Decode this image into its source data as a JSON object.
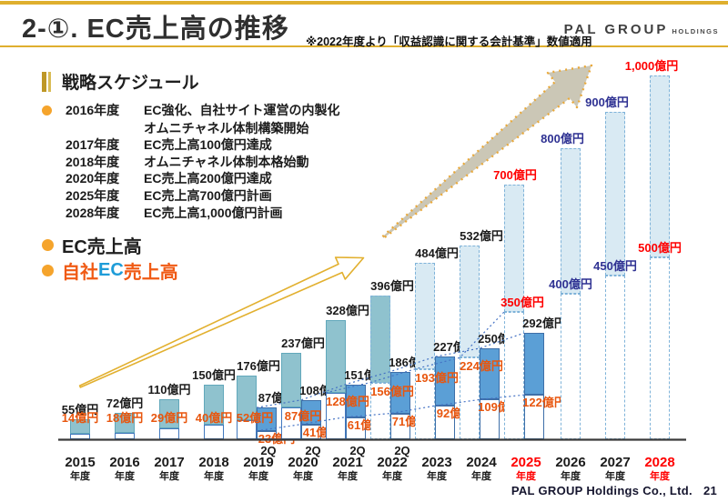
{
  "header": {
    "title": "2-①. EC売上高の推移",
    "note": "※2022年度より「収益認識に関する会計基準」数値適用",
    "logo_main": "PAL GROUP",
    "logo_sub": "HOLDINGS"
  },
  "footer": {
    "company": "PAL GROUP Holdings Co., Ltd.",
    "page": "21"
  },
  "strategy": {
    "heading": "戦略スケジュール",
    "items": [
      {
        "bullet": true,
        "year": "2016年度",
        "text": "EC強化、自社サイト運営の内製化"
      },
      {
        "bullet": false,
        "year": "",
        "text": "オムニチャネル体制構築開始"
      },
      {
        "bullet": false,
        "year": "2017年度",
        "text": "EC売上高100億円達成"
      },
      {
        "bullet": false,
        "year": "2018年度",
        "text": "オムニチャネル体制本格始動"
      },
      {
        "bullet": false,
        "year": "2020年度",
        "text": "EC売上高200億円達成"
      },
      {
        "bullet": false,
        "year": "2025年度",
        "text": "EC売上高700億円計画"
      },
      {
        "bullet": false,
        "year": "2028年度",
        "text": "EC売上高1,000億円計画"
      }
    ]
  },
  "legend": [
    {
      "parts": [
        {
          "text": "EC売上高",
          "color": "#1f1f1f"
        }
      ]
    },
    {
      "parts": [
        {
          "text": "自社",
          "color": "#F05A14"
        },
        {
          "text": "EC",
          "color": "#1E9CD8"
        },
        {
          "text": "売上高",
          "color": "#F05A14"
        }
      ]
    }
  ],
  "chart_data": {
    "type": "bar",
    "unit": "億円",
    "year_suffix": "年度",
    "q2_text": "2Q",
    "title": "EC売上高の推移",
    "series_names": [
      "EC売上高",
      "自社EC売上高",
      "2Q EC売上高",
      "2Q 自社EC売上高"
    ],
    "years": [
      {
        "label": "2015",
        "ec_total": 55,
        "own_ec": 14
      },
      {
        "label": "2016",
        "ec_total": 72,
        "own_ec": 18
      },
      {
        "label": "2017",
        "ec_total": 110,
        "own_ec": 29
      },
      {
        "label": "2018",
        "ec_total": 150,
        "own_ec": 40
      },
      {
        "label": "2019",
        "ec_total": 176,
        "own_ec": 52,
        "q2_total": 87,
        "q2_own": 23,
        "q2_label": true
      },
      {
        "label": "2020",
        "ec_total": 237,
        "own_ec": 87,
        "q2_total": 108,
        "q2_own": 41,
        "q2_label": true
      },
      {
        "label": "2021",
        "ec_total": 328,
        "own_ec": 128,
        "q2_total": 151,
        "q2_own": 61,
        "q2_label": true
      },
      {
        "label": "2022",
        "ec_total": 396,
        "own_ec": 156,
        "q2_total": 186,
        "q2_own": 71,
        "q2_label": true,
        "style": "teal-dashed"
      },
      {
        "label": "2023",
        "ec_total": 484,
        "own_ec": 193,
        "q2_total": 227,
        "q2_own": 92,
        "style": "forecast"
      },
      {
        "label": "2024",
        "ec_total": 532,
        "own_ec": 224,
        "q2_total": 250,
        "q2_own": 109,
        "style": "forecast"
      },
      {
        "label": "2025",
        "ec_total": 700,
        "own_ec": 350,
        "q2_total": 292,
        "q2_own": 122,
        "style": "forecast",
        "emphasis": "red"
      },
      {
        "label": "2026",
        "ec_total": 800,
        "own_ec": 400,
        "style": "forecast",
        "emphasis": "navy"
      },
      {
        "label": "2027",
        "ec_total": 900,
        "own_ec": 450,
        "style": "forecast",
        "emphasis": "navy"
      },
      {
        "label": "2028",
        "ec_total": 1000,
        "own_ec": 500,
        "style": "forecast",
        "emphasis": "red"
      }
    ],
    "colors": {
      "teal": "#8FC2CE",
      "teal_border": "#62A8BB",
      "blue": "#5B9FD6",
      "blue_border": "#3E6FA8",
      "forecast": "#D9EAF3",
      "forecast_border": "#7FB3D9",
      "orange": "#E8560E",
      "red": "#FF0000",
      "navy": "#2E3192",
      "black": "#1b1b1b",
      "trend_line": "#4472C4",
      "axis": "#3a3a3a",
      "gold_accent": "#DFAF2E",
      "arrow_beige": "#CBC7B6",
      "arrow_dot_orange": "#E9A93C"
    },
    "ylim": [
      0,
      1000
    ],
    "grid": false,
    "legend_position": "left"
  }
}
